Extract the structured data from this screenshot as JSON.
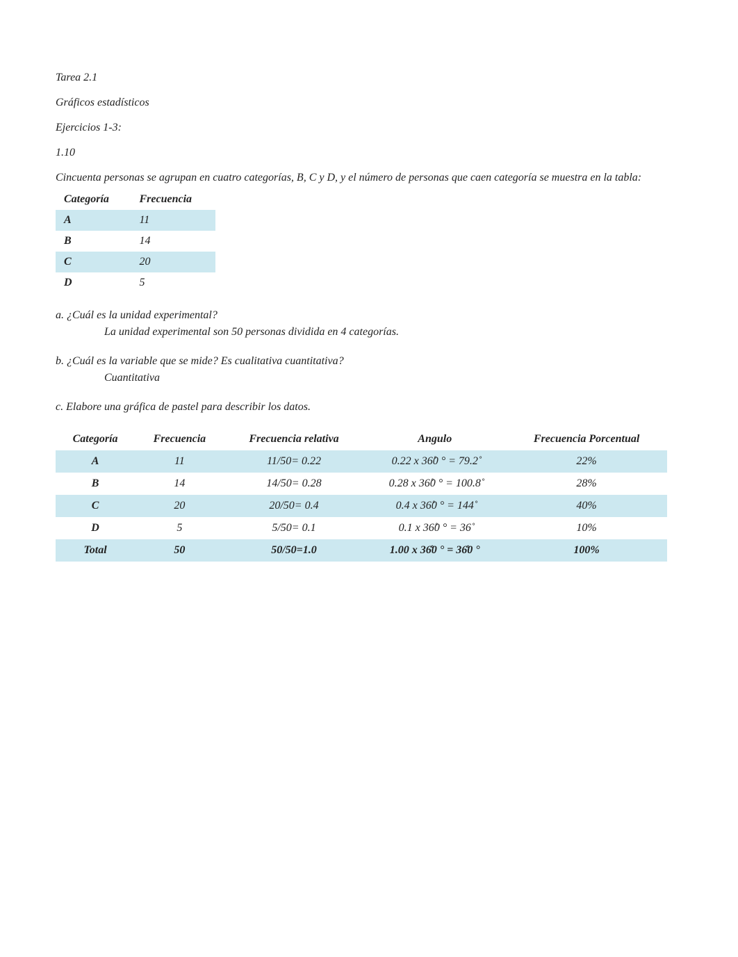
{
  "title": "Tarea 2.1",
  "subtitle": "Gráficos estadísticos",
  "exercises_label": "Ejercicios 1-3:",
  "item_number": "1.10",
  "intro": "Cincuenta personas se agrupan en cuatro categorías, B, C y D, y el número de personas que caen categoría se muestra en la tabla:",
  "small_table": {
    "headers": [
      "Categoría",
      "Frecuencia"
    ],
    "rows": [
      {
        "cat": "A",
        "freq": "11",
        "highlight": true
      },
      {
        "cat": "B",
        "freq": "14",
        "highlight": false
      },
      {
        "cat": "C",
        "freq": "20",
        "highlight": true
      },
      {
        "cat": "D",
        "freq": "5",
        "highlight": false
      }
    ]
  },
  "qa": {
    "a_q": "a. ¿Cuál es la unidad experimental?",
    "a_ans": "La unidad experimental son 50 personas dividida en 4 categorías.",
    "b_q": "b. ¿Cuál es la variable que se mide? Es cualitativa cuantitativa?",
    "b_ans": "Cuantitativa",
    "c_q": "c. Elabore una gráfica de pastel para describir los datos."
  },
  "big_table": {
    "headers": [
      "Categoría",
      "Frecuencia",
      "Frecuencia relativa",
      "Angulo",
      "Frecuencia Porcentual"
    ],
    "rows": [
      {
        "cat": "A",
        "freq": "11",
        "rel": "11/50= 0.22",
        "ang": "0.22 x 36̊0 ° = 79.2̊",
        "pct": "22%",
        "highlight": true
      },
      {
        "cat": "B",
        "freq": "14",
        "rel": "14/50= 0.28",
        "ang": "0.28 x 36̊0 ° = 100.8̊",
        "pct": "28%",
        "highlight": false
      },
      {
        "cat": "C",
        "freq": "20",
        "rel": "20/50= 0.4",
        "ang": "0.4 x 36̊0 ° = 144̊",
        "pct": "40%",
        "highlight": true
      },
      {
        "cat": "D",
        "freq": "5",
        "rel": "5/50= 0.1",
        "ang": "0.1 x 36̊0 ° = 36̊",
        "pct": "10%",
        "highlight": false
      },
      {
        "cat": "Total",
        "freq": "50",
        "rel": "50/50=1.0",
        "ang": "1.00 x 36̊0 ° = 36̊0 °",
        "pct": "100%",
        "highlight": true,
        "bold": true
      }
    ]
  },
  "colors": {
    "highlight": "#cce8f0",
    "text": "#222222",
    "background": "#ffffff"
  }
}
